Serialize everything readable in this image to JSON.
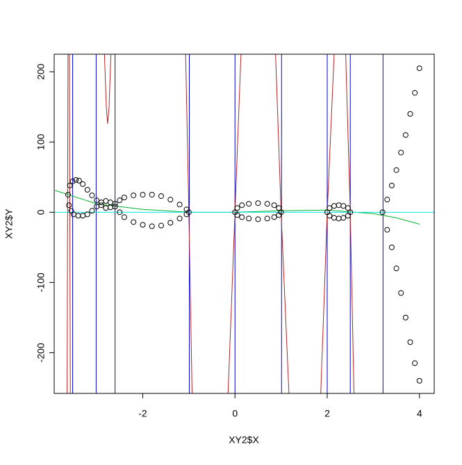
{
  "chart_data": {
    "type": "scatter",
    "xlabel": "XY2$X",
    "ylabel": "XY2$Y",
    "xlim": [
      -3.92,
      4.32
    ],
    "ylim": [
      -258,
      225
    ],
    "xticks": [
      -2,
      0,
      2,
      4
    ],
    "yticks": [
      -200,
      -100,
      0,
      100,
      200
    ],
    "points": {
      "color": "#000000",
      "x": [
        -3.62,
        -3.58,
        -3.52,
        -3.45,
        -3.38,
        -3.3,
        -3.2,
        -3.1,
        -3.0,
        -2.9,
        -2.8,
        -2.7,
        -2.6,
        -2.5,
        -2.4,
        -2.2,
        -2.0,
        -1.8,
        -1.6,
        -1.4,
        -1.2,
        -1.05,
        -1.0,
        -3.6,
        -3.55,
        -3.5,
        -3.4,
        -3.3,
        -3.2,
        -3.1,
        -3.0,
        -2.9,
        -2.8,
        -2.7,
        -2.6,
        -2.5,
        -2.4,
        -2.2,
        -2.0,
        -1.8,
        -1.6,
        -1.4,
        -1.2,
        -1.05,
        0,
        0.05,
        0.15,
        0.3,
        0.5,
        0.7,
        0.85,
        0.95,
        1.0,
        0.95,
        0.85,
        0.7,
        0.5,
        0.3,
        0.15,
        0.05,
        2.0,
        2.05,
        2.15,
        2.25,
        2.35,
        2.45,
        2.5,
        2.45,
        2.35,
        2.25,
        2.15,
        2.05,
        3.2,
        3.3,
        3.4,
        3.5,
        3.6,
        3.7,
        3.8,
        3.9,
        4.0,
        3.3,
        3.4,
        3.5,
        3.6,
        3.7,
        3.8,
        3.9,
        4.0
      ],
      "y": [
        25,
        38,
        44,
        46,
        45,
        40,
        32,
        24,
        17,
        10,
        6,
        7,
        12,
        17,
        21,
        24,
        25,
        25,
        23,
        18,
        11,
        4,
        0,
        10,
        2,
        -3,
        -5,
        -5,
        -3,
        2,
        8,
        14,
        16,
        14,
        8,
        0,
        -7,
        -14,
        -18,
        -20,
        -19,
        -15,
        -9,
        -3,
        0,
        6,
        10,
        12,
        13,
        12,
        10,
        6,
        0,
        -4,
        -7,
        -9,
        -10,
        -9,
        -7,
        -4,
        0,
        6,
        9,
        10,
        9,
        6,
        0,
        -5,
        -8,
        -9,
        -8,
        -5,
        0,
        18,
        38,
        60,
        85,
        110,
        140,
        170,
        205,
        -25,
        -50,
        -80,
        -115,
        -150,
        -185,
        -215,
        -240
      ]
    },
    "lines": [
      {
        "color": "#b22222",
        "x": [
          -3.64,
          -3.62,
          null,
          -3.59,
          -3.57,
          null,
          -2.83,
          -2.79,
          -2.76,
          -2.73,
          -2.69,
          null,
          -1.07,
          -1.0,
          -0.93,
          null,
          -0.15,
          0,
          0.13,
          null,
          0.88,
          1.0,
          1.17,
          null,
          1.86,
          2.0,
          2.15,
          null,
          2.4,
          2.5,
          2.58
        ],
        "y": [
          -258,
          225,
          null,
          225,
          -258,
          null,
          225,
          150,
          126,
          150,
          225,
          null,
          225,
          0,
          -258,
          null,
          -258,
          0,
          225,
          null,
          225,
          0,
          -258,
          null,
          -258,
          0,
          225,
          null,
          225,
          0,
          -258
        ]
      },
      {
        "color": "#00b030",
        "x": [
          -3.9,
          -3,
          -2,
          -1,
          0,
          1,
          2,
          3,
          3.5,
          4
        ],
        "y": [
          31,
          12,
          4,
          0,
          0,
          2,
          3,
          -2,
          -8,
          -17
        ]
      }
    ],
    "vlines": {
      "color": "#0000cc",
      "x": [
        -3.52,
        -3.01,
        -2.6,
        -0.99,
        0,
        1.01,
        2.0,
        2.5,
        3.21
      ]
    },
    "hline": {
      "color": "#00e5e5",
      "y": 0
    }
  }
}
